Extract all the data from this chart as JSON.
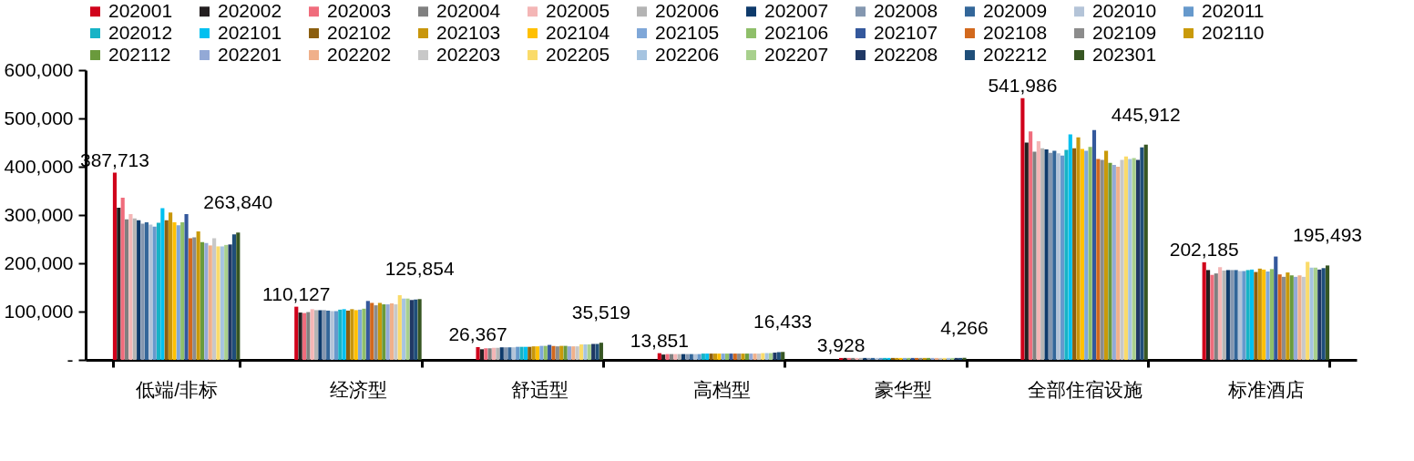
{
  "chart_data": {
    "type": "bar",
    "categories": [
      "低端/非标",
      "经济型",
      "舒适型",
      "高档型",
      "豪华型",
      "全部住宿设施",
      "标准酒店"
    ],
    "ylim": [
      0,
      600000
    ],
    "yticks": [
      {
        "value": 0,
        "label": "-"
      },
      {
        "value": 100000,
        "label": "100,000"
      },
      {
        "value": 200000,
        "label": "200,000"
      },
      {
        "value": 300000,
        "label": "300,000"
      },
      {
        "value": 400000,
        "label": "400,000"
      },
      {
        "value": 500000,
        "label": "500,000"
      },
      {
        "value": 600000,
        "label": "600,000"
      }
    ],
    "legend": "top",
    "grid": false,
    "series": [
      {
        "name": "202001",
        "color": "#d0021b",
        "values": [
          387713,
          110127,
          26367,
          13851,
          3928,
          541986,
          202185
        ],
        "value_labels": [
          "387,713",
          "110,127",
          "26,367",
          "13,851",
          "3,928",
          "541,986",
          "202,185"
        ]
      },
      {
        "name": "202002",
        "color": "#231f20",
        "values": [
          315000,
          98000,
          22000,
          11000,
          4000,
          450000,
          186000
        ]
      },
      {
        "name": "202003",
        "color": "#f06c7c",
        "values": [
          336000,
          97000,
          24000,
          12000,
          4000,
          473000,
          176000
        ]
      },
      {
        "name": "202004",
        "color": "#808080",
        "values": [
          291000,
          99000,
          24000,
          12000,
          4000,
          431000,
          179000
        ]
      },
      {
        "name": "202005",
        "color": "#f4b6b6",
        "values": [
          302000,
          105000,
          25000,
          12000,
          4000,
          453000,
          192000
        ]
      },
      {
        "name": "202006",
        "color": "#b4b4b4",
        "values": [
          293000,
          103000,
          25000,
          12000,
          4000,
          438000,
          185000
        ]
      },
      {
        "name": "202007",
        "color": "#0e3a6b",
        "values": [
          289000,
          103000,
          26000,
          12000,
          4000,
          436000,
          186000
        ]
      },
      {
        "name": "202008",
        "color": "#8497b0",
        "values": [
          282000,
          103000,
          26000,
          12000,
          4000,
          429000,
          186000
        ]
      },
      {
        "name": "202009",
        "color": "#336699",
        "values": [
          285000,
          102000,
          26000,
          12000,
          4000,
          433000,
          186000
        ]
      },
      {
        "name": "202010",
        "color": "#b4c4d8",
        "values": [
          280000,
          101000,
          26000,
          12000,
          4000,
          428000,
          184000
        ]
      },
      {
        "name": "202011",
        "color": "#6699cc",
        "values": [
          276000,
          101000,
          27000,
          12000,
          4000,
          423000,
          184000
        ]
      },
      {
        "name": "202012",
        "color": "#17b3c6",
        "values": [
          284000,
          104000,
          27000,
          13000,
          4000,
          435000,
          186000
        ]
      },
      {
        "name": "202101",
        "color": "#00c0f0",
        "values": [
          314000,
          105000,
          27000,
          13000,
          4000,
          467000,
          187000
        ]
      },
      {
        "name": "202102",
        "color": "#8b5e0f",
        "values": [
          289000,
          102000,
          27000,
          13000,
          4000,
          438000,
          182000
        ]
      },
      {
        "name": "202103",
        "color": "#c8960c",
        "values": [
          305000,
          105000,
          28000,
          13000,
          4000,
          461000,
          189000
        ]
      },
      {
        "name": "202104",
        "color": "#ffc000",
        "values": [
          285000,
          103000,
          28000,
          13000,
          4000,
          437000,
          187000
        ]
      },
      {
        "name": "202105",
        "color": "#7fa7d8",
        "values": [
          279000,
          104000,
          29000,
          13000,
          4000,
          433000,
          183000
        ]
      },
      {
        "name": "202106",
        "color": "#8fbf6a",
        "values": [
          285000,
          106000,
          29000,
          13000,
          4000,
          441000,
          188000
        ]
      },
      {
        "name": "202107",
        "color": "#34589c",
        "values": [
          302000,
          122000,
          31000,
          13000,
          4000,
          476000,
          214000
        ]
      },
      {
        "name": "202108",
        "color": "#d2691e",
        "values": [
          252000,
          118000,
          29000,
          13000,
          4000,
          416000,
          177000
        ]
      },
      {
        "name": "202109",
        "color": "#8c8c8c",
        "values": [
          254000,
          113000,
          28000,
          13000,
          4000,
          414000,
          172000
        ]
      },
      {
        "name": "202110",
        "color": "#c99a0a",
        "values": [
          266000,
          118000,
          29000,
          13000,
          4000,
          433000,
          181000
        ]
      },
      {
        "name": "202112",
        "color": "#6a9a3c",
        "values": [
          244000,
          115000,
          29000,
          13000,
          4000,
          408000,
          175000
        ]
      },
      {
        "name": "202201",
        "color": "#93a9d6",
        "values": [
          242000,
          115000,
          28000,
          13000,
          4000,
          404000,
          172000
        ]
      },
      {
        "name": "202202",
        "color": "#f0b08a",
        "values": [
          237000,
          117000,
          28000,
          13000,
          4000,
          400000,
          175000
        ]
      },
      {
        "name": "202203",
        "color": "#c8c8c8",
        "values": [
          252000,
          115000,
          28000,
          13000,
          4000,
          414000,
          172000
        ]
      },
      {
        "name": "202205",
        "color": "#fadb6a",
        "values": [
          235000,
          134000,
          32000,
          14000,
          4000,
          421000,
          203000
        ]
      },
      {
        "name": "202206",
        "color": "#a6c4e0",
        "values": [
          235000,
          127000,
          32000,
          14000,
          4000,
          416000,
          191000
        ]
      },
      {
        "name": "202207",
        "color": "#a8d08d",
        "values": [
          238000,
          127000,
          32000,
          14000,
          4000,
          418000,
          191000
        ]
      },
      {
        "name": "202208",
        "color": "#1f3864",
        "values": [
          239000,
          124000,
          33000,
          15000,
          4000,
          414000,
          187000
        ]
      },
      {
        "name": "202212",
        "color": "#1f4e79",
        "values": [
          260000,
          125000,
          33000,
          16000,
          4000,
          440000,
          190000
        ]
      },
      {
        "name": "202301",
        "color": "#375623",
        "values": [
          263840,
          125854,
          35519,
          16433,
          4266,
          445912,
          195493
        ],
        "value_labels": [
          "263,840",
          "125,854",
          "35,519",
          "16,433",
          "4,266",
          "445,912",
          "195,493"
        ]
      }
    ]
  }
}
